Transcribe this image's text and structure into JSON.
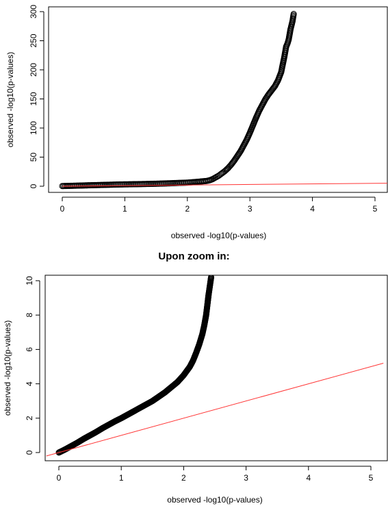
{
  "zoom_caption": "Upon zoom in:",
  "chart_data": [
    {
      "type": "scatter",
      "title": "",
      "xlabel": "observed -log10(p-values)",
      "ylabel": "observed -log10(p-values)",
      "xlim": [
        0,
        5
      ],
      "ylim": [
        0,
        300
      ],
      "xticks": [
        0,
        1,
        2,
        3,
        4,
        5
      ],
      "yticks": [
        0,
        50,
        100,
        150,
        200,
        250,
        300
      ],
      "grid": false,
      "legend": "none",
      "colors": {
        "points": "#000000",
        "reference_line": "#ff3333"
      },
      "series": [
        {
          "marker": "open-circle",
          "x": [
            0.0,
            0.1,
            0.2,
            0.3,
            0.4,
            0.5,
            0.6,
            0.7,
            0.8,
            0.9,
            1.0,
            1.1,
            1.2,
            1.3,
            1.4,
            1.5,
            1.6,
            1.7,
            1.8,
            1.9,
            2.0,
            2.1,
            2.2,
            2.3,
            2.35,
            2.4,
            2.45,
            2.5,
            2.55,
            2.6,
            2.65,
            2.7,
            2.75,
            2.8,
            2.85,
            2.9,
            2.95,
            3.0,
            3.05,
            3.1,
            3.15,
            3.2,
            3.25,
            3.3,
            3.35,
            3.4,
            3.45,
            3.5,
            3.55,
            3.58,
            3.6,
            3.62,
            3.65,
            3.68,
            3.7
          ],
          "y": [
            0.3,
            0.6,
            0.9,
            1.2,
            1.5,
            1.8,
            2.1,
            2.4,
            2.7,
            3.0,
            3.2,
            3.4,
            3.6,
            3.8,
            4.0,
            4.3,
            4.6,
            5.0,
            5.4,
            5.8,
            6.2,
            7.0,
            8.0,
            9.0,
            10,
            12,
            15,
            18,
            22,
            26,
            31,
            37,
            44,
            52,
            60,
            70,
            80,
            92,
            105,
            118,
            130,
            140,
            150,
            158,
            165,
            172,
            182,
            196,
            222,
            240,
            245,
            252,
            270,
            283,
            296
          ]
        }
      ],
      "reference_line": {
        "from": [
          0,
          0
        ],
        "to": [
          5.2,
          5.2
        ]
      }
    },
    {
      "type": "scatter",
      "title": "",
      "xlabel": "observed -log10(p-values)",
      "ylabel": "observed -log10(p-values)",
      "xlim": [
        0,
        5
      ],
      "ylim": [
        0,
        10
      ],
      "xticks": [
        0,
        1,
        2,
        3,
        4,
        5
      ],
      "yticks": [
        0,
        2,
        4,
        6,
        8,
        10
      ],
      "grid": false,
      "legend": "none",
      "colors": {
        "points": "#000000",
        "reference_line": "#ff3333"
      },
      "series": [
        {
          "marker": "open-circle",
          "x": [
            0.0,
            0.1,
            0.2,
            0.3,
            0.4,
            0.5,
            0.6,
            0.7,
            0.8,
            0.9,
            1.0,
            1.1,
            1.2,
            1.3,
            1.4,
            1.5,
            1.6,
            1.7,
            1.8,
            1.9,
            2.0,
            2.1,
            2.15,
            2.2,
            2.25,
            2.3,
            2.33,
            2.36,
            2.38,
            2.4,
            2.42,
            2.44
          ],
          "y": [
            0.0,
            0.18,
            0.38,
            0.58,
            0.8,
            1.0,
            1.2,
            1.42,
            1.62,
            1.82,
            2.0,
            2.2,
            2.4,
            2.6,
            2.8,
            3.0,
            3.25,
            3.5,
            3.8,
            4.1,
            4.5,
            5.0,
            5.35,
            5.8,
            6.3,
            6.9,
            7.4,
            8.0,
            8.6,
            9.2,
            9.7,
            10.2
          ]
        }
      ],
      "reference_line": {
        "from": [
          -0.2,
          -0.2
        ],
        "to": [
          5.2,
          5.2
        ]
      }
    }
  ]
}
